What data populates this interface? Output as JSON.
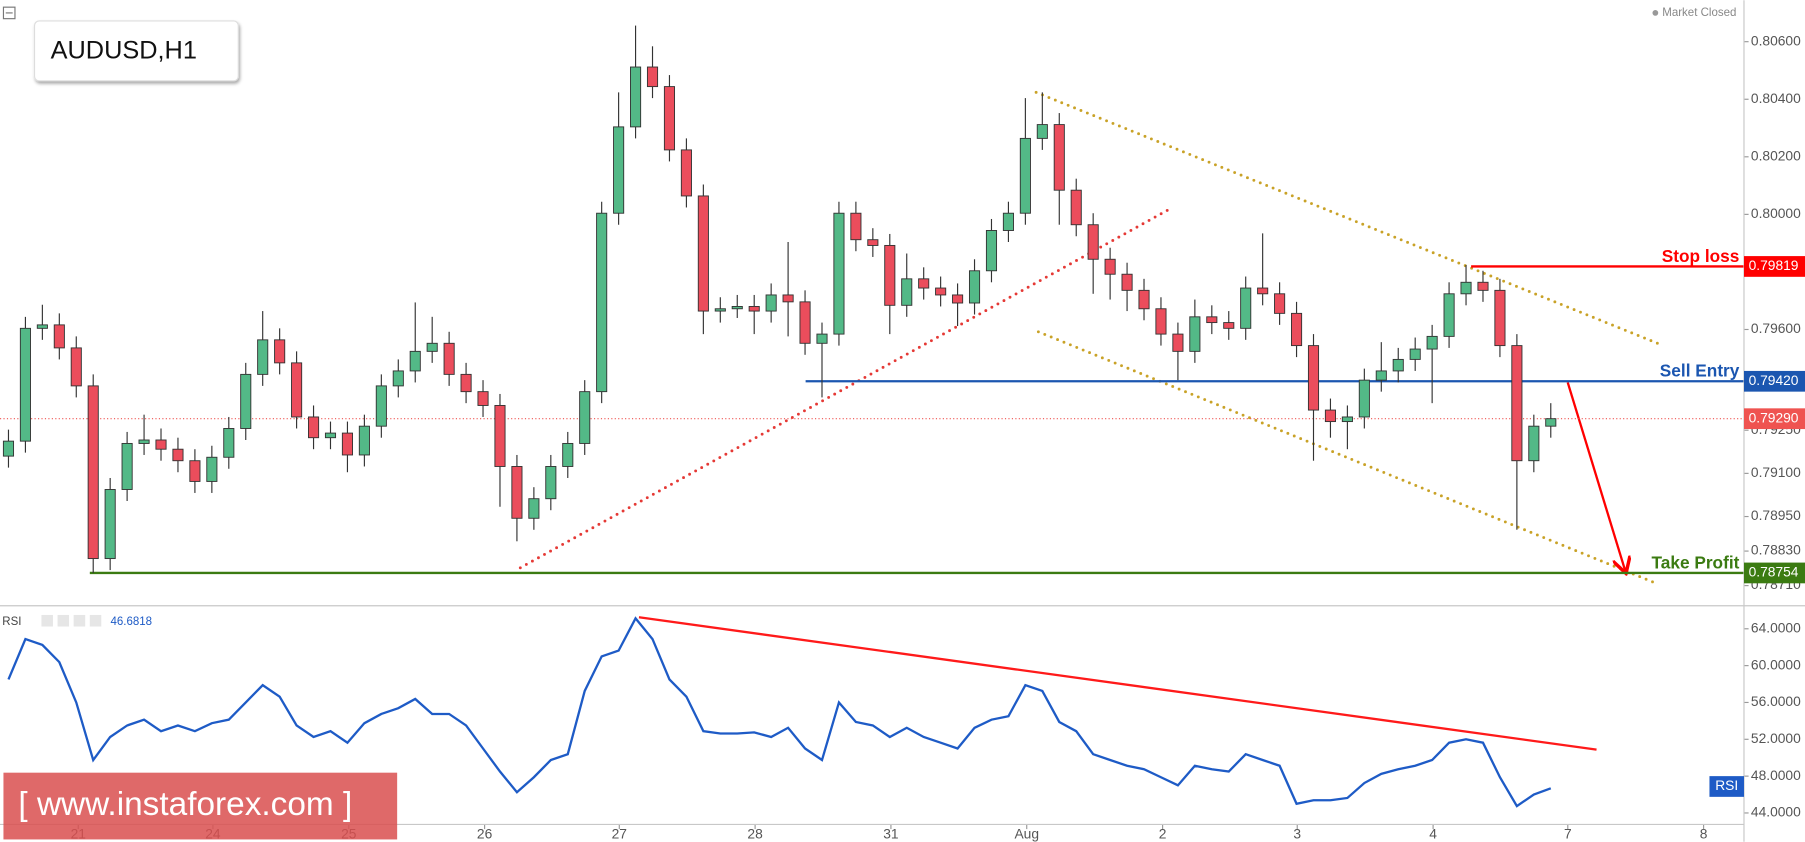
{
  "chart_data": [
    {
      "type": "candlestick",
      "title": "AUDUSD,H1",
      "status": "Market Closed",
      "watermark": "[ www.instaforex.com ]",
      "up_color": "#53b987",
      "down_color": "#eb4d5c",
      "x": [
        1.5,
        4.5,
        7.5,
        10.5,
        13.5,
        16.5,
        19.5,
        22.5,
        25.5,
        28.5,
        31.5,
        34.5,
        37.5,
        40.5,
        43.5,
        46.5,
        49.5,
        52.5,
        55.5,
        58.5,
        61.5,
        64.5,
        67.5,
        70.5,
        73.5,
        76.5,
        79.5,
        82.5,
        85.5,
        88.5,
        91.5,
        94.5,
        97.5,
        100.5,
        103.5,
        106.5,
        109.5,
        112.5,
        115.5,
        118.5,
        121.5,
        124.5,
        127.5,
        130.5,
        133.5,
        136.5,
        139.5,
        142.5,
        145.5,
        148.5,
        151.5,
        154.5,
        157.5,
        160.5,
        163.5,
        166.5,
        169.5,
        172.5,
        175.5,
        178.5,
        181.5,
        184.5,
        187.5,
        190.5,
        193.5,
        196.5,
        199.5,
        202.5,
        205.5,
        208.5,
        211.5,
        214.5,
        217.5,
        220.5,
        223.5,
        226.5,
        229.5,
        232.5,
        235.5,
        238.5,
        241.5,
        244.5,
        247.5,
        250.5,
        253.5,
        256.5,
        259.5,
        262.5,
        265.5,
        268.5,
        271.5,
        274.5
      ],
      "open": [
        0.7916,
        0.79212,
        0.79604,
        0.79616,
        0.79536,
        0.79404,
        0.78804,
        0.79044,
        0.79204,
        0.79216,
        0.79184,
        0.79144,
        0.79072,
        0.79156,
        0.79256,
        0.79444,
        0.79564,
        0.79484,
        0.79296,
        0.79224,
        0.7924,
        0.79164,
        0.79264,
        0.79404,
        0.79456,
        0.79524,
        0.79552,
        0.79444,
        0.79384,
        0.79336,
        0.79124,
        0.78944,
        0.79012,
        0.79124,
        0.79204,
        0.79384,
        0.80004,
        0.80304,
        0.80512,
        0.80444,
        0.80224,
        0.80064,
        0.79664,
        0.79672,
        0.7968,
        0.79664,
        0.7972,
        0.79696,
        0.79552,
        0.79584,
        0.80004,
        0.79912,
        0.79892,
        0.79684,
        0.79776,
        0.79744,
        0.7972,
        0.79692,
        0.79804,
        0.79944,
        0.80004,
        0.80264,
        0.80312,
        0.80084,
        0.79964,
        0.79844,
        0.79792,
        0.79736,
        0.79672,
        0.79584,
        0.79524,
        0.79644,
        0.79624,
        0.79604,
        0.79744,
        0.79724,
        0.79656,
        0.79544,
        0.7932,
        0.7928,
        0.79296,
        0.79424,
        0.79456,
        0.79496,
        0.79532,
        0.79576,
        0.79724,
        0.79764,
        0.79736,
        0.79544,
        0.79144,
        0.79264
      ],
      "high": [
        0.79252,
        0.79644,
        0.79686,
        0.79656,
        0.79576,
        0.79444,
        0.79084,
        0.79244,
        0.79304,
        0.79256,
        0.79224,
        0.79184,
        0.79196,
        0.79296,
        0.79484,
        0.79664,
        0.79604,
        0.79524,
        0.79336,
        0.7928,
        0.7928,
        0.79304,
        0.79444,
        0.79496,
        0.79694,
        0.79644,
        0.79592,
        0.79484,
        0.79424,
        0.79376,
        0.79164,
        0.79052,
        0.79164,
        0.79244,
        0.79424,
        0.80044,
        0.80424,
        0.80656,
        0.80584,
        0.80484,
        0.80264,
        0.80104,
        0.79712,
        0.7972,
        0.7972,
        0.7976,
        0.79904,
        0.79736,
        0.79624,
        0.80044,
        0.80044,
        0.79952,
        0.79932,
        0.79864,
        0.79816,
        0.79784,
        0.7976,
        0.79844,
        0.79984,
        0.80044,
        0.80404,
        0.80424,
        0.80352,
        0.80124,
        0.80004,
        0.79884,
        0.79832,
        0.79776,
        0.79712,
        0.79624,
        0.79704,
        0.79684,
        0.79664,
        0.79784,
        0.79934,
        0.79764,
        0.79696,
        0.79584,
        0.7936,
        0.79336,
        0.79464,
        0.79556,
        0.79536,
        0.79572,
        0.79616,
        0.79764,
        0.79824,
        0.79804,
        0.79776,
        0.79584,
        0.79304,
        0.79344
      ],
      "low": [
        0.7912,
        0.79172,
        0.79564,
        0.79496,
        0.79364,
        0.78754,
        0.78764,
        0.79004,
        0.79164,
        0.79144,
        0.79104,
        0.79032,
        0.79032,
        0.79116,
        0.79216,
        0.79404,
        0.79444,
        0.79256,
        0.79184,
        0.79184,
        0.79104,
        0.79124,
        0.79224,
        0.79364,
        0.79416,
        0.79484,
        0.79404,
        0.79344,
        0.79296,
        0.78984,
        0.78864,
        0.78904,
        0.78972,
        0.79084,
        0.79164,
        0.79344,
        0.79964,
        0.80264,
        0.80404,
        0.80184,
        0.80024,
        0.79584,
        0.79624,
        0.7964,
        0.79584,
        0.79624,
        0.79576,
        0.79512,
        0.79364,
        0.79544,
        0.79872,
        0.79852,
        0.79584,
        0.79644,
        0.79704,
        0.7968,
        0.79612,
        0.79652,
        0.79764,
        0.79904,
        0.79964,
        0.80224,
        0.79964,
        0.79924,
        0.79724,
        0.79704,
        0.79664,
        0.79632,
        0.79544,
        0.79424,
        0.79484,
        0.79584,
        0.79564,
        0.79564,
        0.79684,
        0.79616,
        0.79504,
        0.79144,
        0.79224,
        0.79184,
        0.79256,
        0.79384,
        0.79416,
        0.79456,
        0.79344,
        0.79536,
        0.79684,
        0.79696,
        0.79504,
        0.78904,
        0.79104,
        0.79224
      ],
      "close": [
        0.79212,
        0.79604,
        0.79616,
        0.79536,
        0.79404,
        0.78804,
        0.79044,
        0.79204,
        0.79216,
        0.79184,
        0.79144,
        0.79072,
        0.79156,
        0.79256,
        0.79444,
        0.79564,
        0.79484,
        0.79296,
        0.79224,
        0.7924,
        0.79164,
        0.79264,
        0.79404,
        0.79456,
        0.79524,
        0.79552,
        0.79444,
        0.79384,
        0.79336,
        0.79124,
        0.78944,
        0.79012,
        0.79124,
        0.79204,
        0.79384,
        0.80004,
        0.80304,
        0.80512,
        0.80444,
        0.80224,
        0.80064,
        0.79664,
        0.79672,
        0.7968,
        0.79664,
        0.7972,
        0.79696,
        0.79552,
        0.79584,
        0.80004,
        0.79912,
        0.79892,
        0.79684,
        0.79776,
        0.79744,
        0.7972,
        0.79692,
        0.79804,
        0.79944,
        0.80004,
        0.80264,
        0.80312,
        0.80084,
        0.79964,
        0.79844,
        0.79792,
        0.79736,
        0.79672,
        0.79584,
        0.79524,
        0.79644,
        0.79624,
        0.79604,
        0.79744,
        0.79724,
        0.79656,
        0.79544,
        0.7932,
        0.7928,
        0.79296,
        0.79424,
        0.79456,
        0.79496,
        0.79532,
        0.79576,
        0.79724,
        0.79764,
        0.79736,
        0.79544,
        0.79144,
        0.79264,
        0.7929
      ],
      "xlim": [
        0,
        308.7
      ],
      "xticks": [
        {
          "value": 13.85,
          "label": "21"
        },
        {
          "value": 37.69,
          "label": "24"
        },
        {
          "value": 61.74,
          "label": "25"
        },
        {
          "value": 85.78,
          "label": "26"
        },
        {
          "value": 109.62,
          "label": "27"
        },
        {
          "value": 133.66,
          "label": "28"
        },
        {
          "value": 157.7,
          "label": "31"
        },
        {
          "value": 181.74,
          "label": "Aug"
        },
        {
          "value": 205.79,
          "label": "2"
        },
        {
          "value": 229.62,
          "label": "3"
        },
        {
          "value": 253.67,
          "label": "4"
        },
        {
          "value": 277.51,
          "label": "7"
        },
        {
          "value": 301.55,
          "label": "8"
        }
      ],
      "ylim": [
        0.78644,
        0.80744
      ],
      "yticks": [
        {
          "value": 0.806,
          "label": "0.80600"
        },
        {
          "value": 0.804,
          "label": "0.80400"
        },
        {
          "value": 0.802,
          "label": "0.80200"
        },
        {
          "value": 0.8,
          "label": "0.80000"
        },
        {
          "value": 0.796,
          "label": "0.79600"
        },
        {
          "value": 0.7925,
          "label": "0.79250"
        },
        {
          "value": 0.791,
          "label": "0.79100"
        },
        {
          "value": 0.7895,
          "label": "0.78950"
        },
        {
          "value": 0.7883,
          "label": "0.78830"
        },
        {
          "value": 0.7871,
          "label": "0.78710"
        }
      ],
      "levels": [
        {
          "value": 0.7929,
          "label": "0.79290",
          "color": "#ef5350",
          "from": 0,
          "style": "dotted"
        },
        {
          "name": "Stop loss",
          "value": 0.79819,
          "color": "#ff0000",
          "from": 260.4,
          "style": "solid"
        },
        {
          "name": "Sell Entry",
          "value": 0.7942,
          "label": "0.79420",
          "color": "#1b56b0",
          "from": 142.6,
          "style": "solid"
        },
        {
          "name": "Take Profit",
          "value": 0.78754,
          "color": "#3b7b12",
          "from": 15.9,
          "style": "solid"
        }
      ],
      "drawings": [
        {
          "color": "#e53935",
          "style": "dotted",
          "x": [
            92.1,
            206.8
          ],
          "y": [
            0.78772,
            0.80016
          ]
        },
        {
          "color": "#c9a227",
          "style": "dotted",
          "x": [
            183.4,
            293.4
          ],
          "y": [
            0.80424,
            0.79552
          ]
        },
        {
          "color": "#c9a227",
          "style": "dotted",
          "x": [
            183.8,
            293.4
          ],
          "y": [
            0.79592,
            0.78716
          ]
        },
        {
          "color": "#ff0000",
          "style": "arrow",
          "x": [
            277.5,
            287.7
          ],
          "y": [
            0.79416,
            0.7876
          ]
        }
      ]
    },
    {
      "type": "line",
      "name": "RSI",
      "color": "#1e5bc6",
      "values": [
        58.5,
        62.88,
        62.25,
        60.38,
        56,
        49.75,
        52.25,
        53.5,
        54.13,
        52.88,
        53.5,
        52.88,
        53.75,
        54.13,
        56,
        57.88,
        56.63,
        53.5,
        52.25,
        52.88,
        51.63,
        53.75,
        54.75,
        55.38,
        56.38,
        54.75,
        54.75,
        53.5,
        51,
        48.5,
        46.25,
        47.88,
        49.75,
        50.38,
        57.25,
        61,
        61.63,
        65.13,
        62.88,
        58.5,
        56.63,
        52.88,
        52.63,
        52.63,
        52.75,
        52.25,
        53.25,
        51,
        49.75,
        56,
        53.88,
        53.5,
        52.25,
        53.25,
        52.25,
        51.63,
        51,
        53.25,
        54.13,
        54.5,
        57.88,
        57.25,
        53.88,
        52.88,
        50.38,
        49.75,
        49.13,
        48.75,
        47.88,
        47,
        49.13,
        48.75,
        48.5,
        50.38,
        49.75,
        49.13,
        45,
        45.38,
        45.38,
        45.63,
        47.25,
        48.25,
        48.75,
        49.13,
        49.75,
        51.63,
        52,
        51.63,
        47.88,
        44.75,
        46,
        46.6818
      ],
      "ylim": [
        42.875,
        66.375
      ],
      "yticks": [
        {
          "value": 64,
          "label": "64.0000"
        },
        {
          "value": 60,
          "label": "60.0000"
        },
        {
          "value": 56,
          "label": "56.0000"
        },
        {
          "value": 52,
          "label": "52.0000"
        },
        {
          "value": 48,
          "label": "48.0000"
        },
        {
          "value": 44,
          "label": "44.0000"
        }
      ],
      "drawings": [
        {
          "color": "#ff1a1a",
          "style": "solid",
          "x": [
            113.1,
            282.6
          ],
          "y": [
            65.25,
            50.875
          ]
        }
      ]
    }
  ]
}
